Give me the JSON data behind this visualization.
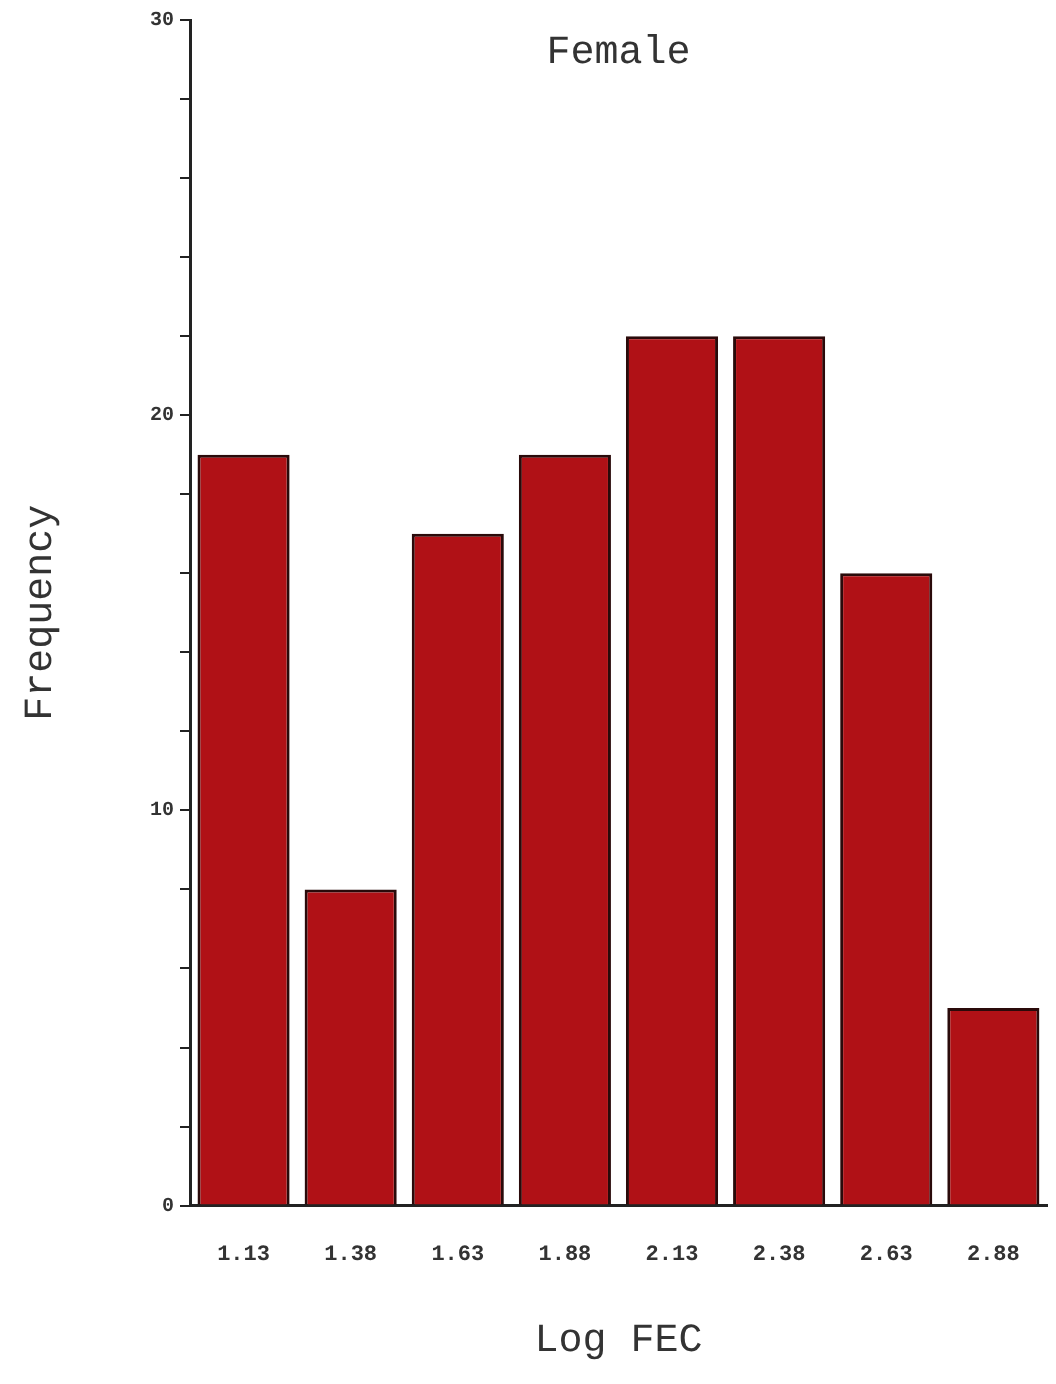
{
  "chart_data": {
    "type": "bar",
    "title": "Female",
    "xlabel": "Log FEC",
    "ylabel": "Frequency",
    "categories": [
      "1.13",
      "1.38",
      "1.63",
      "1.88",
      "2.13",
      "2.38",
      "2.63",
      "2.88"
    ],
    "values": [
      19,
      8,
      17,
      19,
      22,
      22,
      16,
      5
    ],
    "color": "#b01116",
    "ylim": [
      0,
      30
    ],
    "yticks": [
      0,
      {
        "value": 2,
        "label": null
      },
      {
        "value": 4,
        "label": null
      },
      {
        "value": 6,
        "label": null
      },
      {
        "value": 8,
        "label": null
      },
      10,
      {
        "value": 12,
        "label": null
      },
      {
        "value": 14,
        "label": null
      },
      {
        "value": 16,
        "label": null
      },
      {
        "value": 18,
        "label": null
      },
      20,
      {
        "value": 22,
        "label": null
      },
      {
        "value": 24,
        "label": null
      },
      {
        "value": 26,
        "label": null
      },
      {
        "value": 28,
        "label": null
      },
      30
    ],
    "grid": false,
    "legend": false
  }
}
